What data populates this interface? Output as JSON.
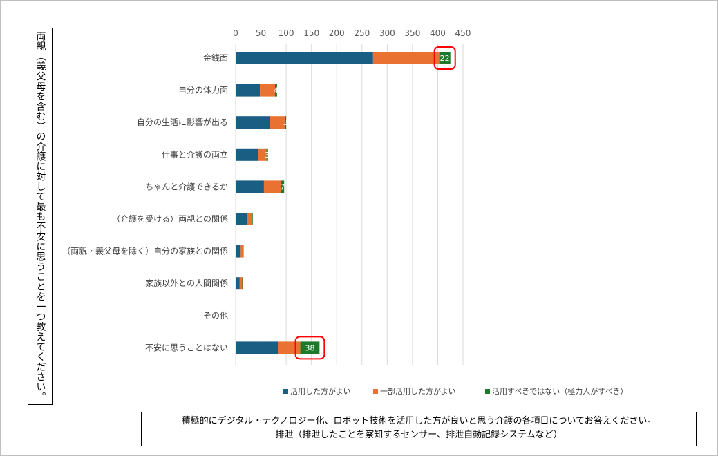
{
  "question_label": "両親（義父母を含む）の介護に対して最も不安に思うことを一つ教えてください。",
  "caption": {
    "line1": "積極的にデジタル・テクノロジー化、ロボット技術を活用した方が良いと思う介護の各項目についてお答えください。",
    "line2": "排泄（排泄したことを察知するセンサー、排泄自動記録システムなど）"
  },
  "colors": {
    "series1": "#1b5e83",
    "series2": "#e97132",
    "series3": "#1d7a2a",
    "highlight": "#ff0000",
    "grid": "#d9d9d9"
  },
  "chart_data": {
    "type": "bar",
    "orientation": "horizontal",
    "stacked": true,
    "categories": [
      "金銭面",
      "自分の体力面",
      "自分の生活に影響が出る",
      "仕事と介護の両立",
      "ちゃんと介護できるか",
      "（介護を受ける）両親との関係",
      "（両親・義父母を除く）自分の家族との関係",
      "家族以外との人間関係",
      "その他",
      "不安に思うことはない"
    ],
    "series": [
      {
        "name": "活用した方がよい",
        "values": [
          272,
          48,
          68,
          44,
          56,
          23,
          10,
          8,
          1,
          84
        ]
      },
      {
        "name": "一部活用した方がよい",
        "values": [
          131,
          30,
          29,
          17,
          33,
          10,
          6,
          5,
          0,
          44
        ]
      },
      {
        "name": "活用すべきではない（極力人がすべき）",
        "values": [
          22,
          4,
          3,
          3,
          7,
          1,
          0,
          1,
          0,
          38
        ]
      }
    ],
    "data_labels": [
      {
        "series": 2,
        "category": 0,
        "text": "22",
        "highlight": true
      },
      {
        "series": 2,
        "category": 1,
        "text": "4"
      },
      {
        "series": 2,
        "category": 2,
        "text": "3"
      },
      {
        "series": 2,
        "category": 3,
        "text": "3"
      },
      {
        "series": 2,
        "category": 4,
        "text": "7"
      },
      {
        "series": 2,
        "category": 9,
        "text": "38",
        "highlight": true
      }
    ],
    "x_ticks": [
      "0",
      "50",
      "100",
      "150",
      "200",
      "250",
      "300",
      "350",
      "400",
      "450"
    ],
    "xlim": [
      0,
      450
    ],
    "xaxis_position": "top",
    "grid": true,
    "legend_position": "bottom"
  }
}
